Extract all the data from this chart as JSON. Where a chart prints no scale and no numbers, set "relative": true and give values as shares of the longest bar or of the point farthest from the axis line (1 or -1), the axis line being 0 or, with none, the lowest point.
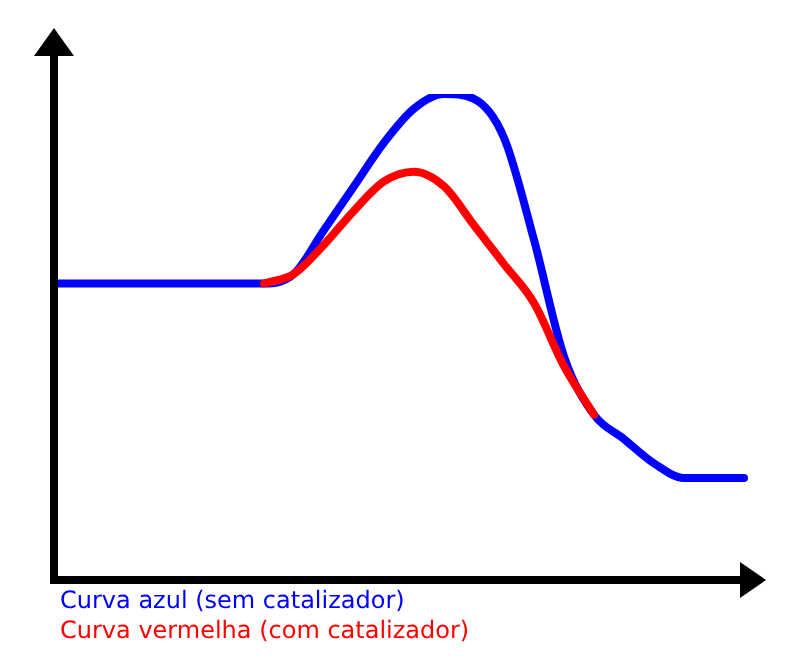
{
  "chart_data": {
    "type": "line",
    "relative": true,
    "legend": "bottom",
    "marker": "none",
    "line_style": "solid",
    "categories": [
      null,
      null,
      null,
      null,
      null,
      null,
      null,
      null,
      null,
      null,
      null,
      null,
      null,
      null,
      null,
      null,
      null,
      null,
      null,
      null,
      null,
      null,
      null,
      null
    ],
    "series": [
      {
        "name": "Curva vermelha (com catalizador)",
        "color": "#ff0000",
        "values": [
          null,
          null,
          null,
          null,
          null,
          null,
          null,
          0.61,
          0.63,
          0.69,
          0.76,
          0.82,
          0.84,
          0.81,
          0.73,
          0.65,
          0.57,
          0.44,
          0.34,
          null,
          null,
          null,
          null,
          null
        ]
      },
      {
        "name": "Curva azul (sem catalizador)",
        "color": "#0000ff",
        "values": [
          0.61,
          0.61,
          0.61,
          0.61,
          0.61,
          0.61,
          0.61,
          0.61,
          0.63,
          0.72,
          0.81,
          0.9,
          0.97,
          1,
          0.99,
          0.91,
          0.7,
          0.46,
          0.34,
          0.29,
          0.24,
          0.21,
          0.21,
          0.21
        ]
      }
    ]
  }
}
